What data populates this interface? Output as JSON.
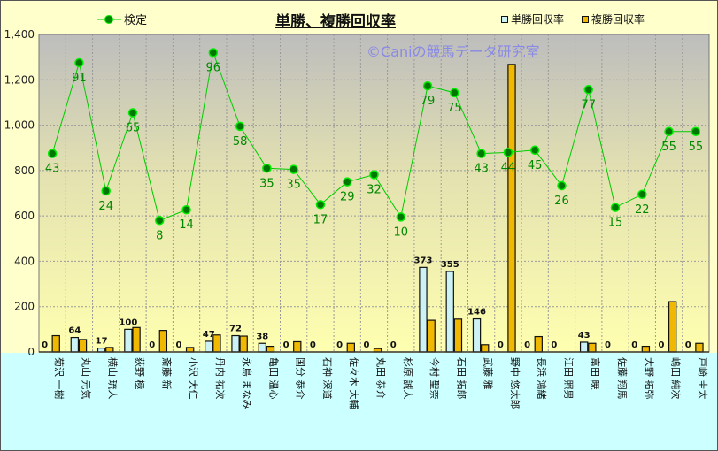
{
  "chart_data": {
    "type": "bar",
    "title": "単勝、複勝回収率",
    "watermark": "©Caniの競馬データ研究室",
    "ylim": [
      0,
      1400
    ],
    "yticks": [
      "0",
      "200",
      "400",
      "600",
      "800",
      "1,000",
      "1,200",
      "1,400"
    ],
    "ytick_values": [
      0,
      200,
      400,
      600,
      800,
      1000,
      1200,
      1400
    ],
    "grid": true,
    "legend_placement": "top",
    "categories": [
      "菊沢 一樹",
      "丸山 元気",
      "横山 琉人",
      "荻野 極",
      "斎藤 新",
      "小沢 大仁",
      "丹内 祐次",
      "永島 まなみ",
      "亀田 温心",
      "国分 恭介",
      "石神 深道",
      "佐々木 大輔",
      "丸田 恭介",
      "杉原 誠人",
      "今村 聖奈",
      "石田 拓郎",
      "武藤 雅",
      "野中 悠太郎",
      "長浜 鴻緒",
      "江田 照男",
      "富田 暁",
      "佐藤 翔馬",
      "大野 拓弥",
      "嶋田 純次",
      "戸崎 圭太"
    ],
    "series": [
      {
        "name": "単勝回収率",
        "type": "bar",
        "color": "#ccf2f5",
        "values": [
          0,
          64,
          17,
          100,
          0,
          0,
          47,
          72,
          38,
          0,
          0,
          0,
          0,
          0,
          373,
          355,
          146,
          0,
          0,
          0,
          43,
          0,
          0,
          0,
          0
        ]
      },
      {
        "name": "複勝回収率",
        "type": "bar",
        "color": "#f0b800",
        "values": [
          72,
          55,
          20,
          108,
          95,
          20,
          75,
          70,
          25,
          45,
          0,
          38,
          15,
          0,
          140,
          145,
          32,
          1268,
          68,
          0,
          38,
          0,
          25,
          222,
          38
        ]
      },
      {
        "name": "検定",
        "type": "line",
        "color": "#00cc00",
        "values": [
          875,
          1275,
          710,
          1055,
          580,
          627,
          1320,
          995,
          810,
          805,
          650,
          750,
          782,
          595,
          1173,
          1143,
          875,
          880,
          890,
          733,
          1157,
          637,
          695,
          972,
          972
        ],
        "labels": [
          "43",
          "91",
          "24",
          "65",
          "8",
          "14",
          "96",
          "58",
          "35",
          "35",
          "17",
          "29",
          "32",
          "10",
          "79",
          "75",
          "43",
          "44",
          "45",
          "26",
          "77",
          "15",
          "22",
          "55",
          "55"
        ]
      }
    ]
  }
}
